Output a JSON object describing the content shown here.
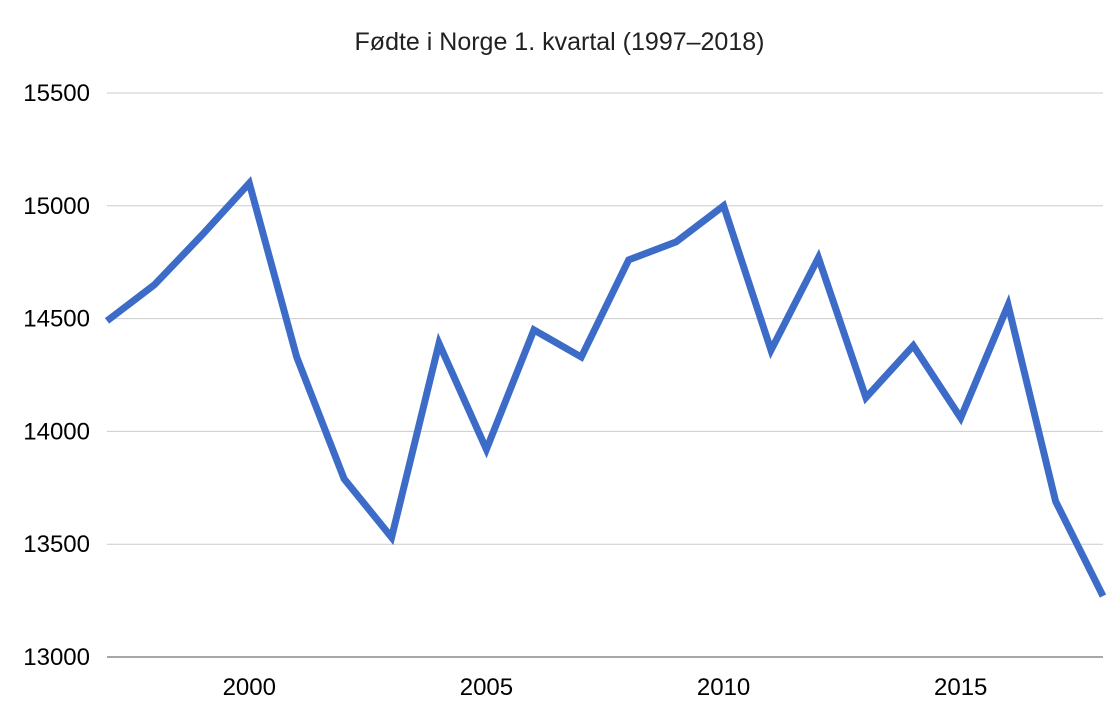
{
  "chart_data": {
    "type": "line",
    "title": "Fødte i Norge 1. kvartal (1997–2018)",
    "xlabel": "",
    "ylabel": "",
    "x": [
      1997,
      1998,
      1999,
      2000,
      2001,
      2002,
      2003,
      2004,
      2005,
      2006,
      2007,
      2008,
      2009,
      2010,
      2011,
      2012,
      2013,
      2014,
      2015,
      2016,
      2017,
      2018
    ],
    "series": [
      {
        "name": "Fødte i Norge 1. kvartal",
        "color": "#3d6cc8",
        "values": [
          14490,
          14650,
          14870,
          15100,
          14330,
          13790,
          13530,
          14390,
          13920,
          14450,
          14330,
          14760,
          14840,
          15000,
          14360,
          14770,
          14150,
          14380,
          14060,
          14560,
          13690,
          13270
        ]
      }
    ],
    "xlim": [
      1997,
      2018
    ],
    "ylim": [
      13000,
      15500
    ],
    "yticks": [
      13000,
      13500,
      14000,
      14500,
      15000,
      15500
    ],
    "xticks": [
      2000,
      2005,
      2010,
      2015
    ],
    "grid": "horizontal",
    "legend": "none",
    "colors": {
      "line": "#3d6cc8",
      "grid": "#cccccc",
      "baseline": "#8a8a8a",
      "tick_text": "#000000",
      "title_text": "#212121",
      "background": "#ffffff"
    }
  }
}
